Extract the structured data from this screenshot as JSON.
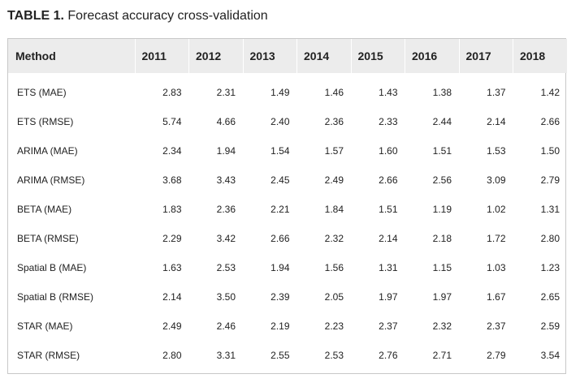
{
  "caption": {
    "label": "TABLE 1.",
    "title": "Forecast accuracy cross-validation"
  },
  "table": {
    "headers": [
      "Method",
      "2011",
      "2012",
      "2013",
      "2014",
      "2015",
      "2016",
      "2017",
      "2018"
    ],
    "rows": [
      [
        "ETS (MAE)",
        "2.83",
        "2.31",
        "1.49",
        "1.46",
        "1.43",
        "1.38",
        "1.37",
        "1.42"
      ],
      [
        "ETS (RMSE)",
        "5.74",
        "4.66",
        "2.40",
        "2.36",
        "2.33",
        "2.44",
        "2.14",
        "2.66"
      ],
      [
        "ARIMA (MAE)",
        "2.34",
        "1.94",
        "1.54",
        "1.57",
        "1.60",
        "1.51",
        "1.53",
        "1.50"
      ],
      [
        "ARIMA (RMSE)",
        "3.68",
        "3.43",
        "2.45",
        "2.49",
        "2.66",
        "2.56",
        "3.09",
        "2.79"
      ],
      [
        "BETA (MAE)",
        "1.83",
        "2.36",
        "2.21",
        "1.84",
        "1.51",
        "1.19",
        "1.02",
        "1.31"
      ],
      [
        "BETA (RMSE)",
        "2.29",
        "3.42",
        "2.66",
        "2.32",
        "2.14",
        "2.18",
        "1.72",
        "2.80"
      ],
      [
        "Spatial B (MAE)",
        "1.63",
        "2.53",
        "1.94",
        "1.56",
        "1.31",
        "1.15",
        "1.03",
        "1.23"
      ],
      [
        "Spatial B (RMSE)",
        "2.14",
        "3.50",
        "2.39",
        "2.05",
        "1.97",
        "1.97",
        "1.67",
        "2.65"
      ],
      [
        "STAR (MAE)",
        "2.49",
        "2.46",
        "2.19",
        "2.23",
        "2.37",
        "2.32",
        "2.37",
        "2.59"
      ],
      [
        "STAR (RMSE)",
        "2.80",
        "3.31",
        "2.55",
        "2.53",
        "2.76",
        "2.71",
        "2.79",
        "3.54"
      ]
    ]
  }
}
